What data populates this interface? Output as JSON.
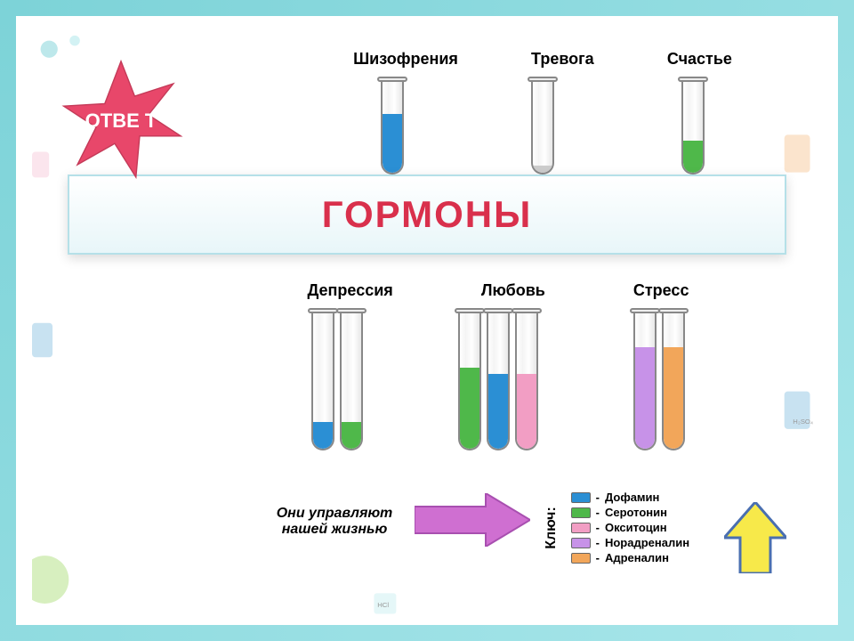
{
  "star_label": "ОТВЕ\nТ",
  "star_color": "#e8476a",
  "title": "ГОРМОНЫ",
  "title_color": "#d9304c",
  "title_bg_gradient": [
    "#ffffff",
    "#e8f6f9"
  ],
  "frame_color": "#7dd3d8",
  "top_row": {
    "labels": [
      "Шизофрения",
      "Тревога",
      "Счастье"
    ],
    "tubes": [
      {
        "fill_pct": 65,
        "color": "#2b8fd4"
      },
      {
        "fill_pct": 8,
        "color": "#cccccc"
      },
      {
        "fill_pct": 35,
        "color": "#4fb84a"
      }
    ]
  },
  "mid_row": {
    "labels": [
      "Депрессия",
      "Любовь",
      "Стресс"
    ],
    "groups": [
      [
        {
          "fill_pct": 20,
          "color": "#2b8fd4"
        },
        {
          "fill_pct": 20,
          "color": "#4fb84a"
        }
      ],
      [
        {
          "fill_pct": 60,
          "color": "#4fb84a"
        },
        {
          "fill_pct": 55,
          "color": "#2b8fd4"
        },
        {
          "fill_pct": 55,
          "color": "#f29ec4"
        }
      ],
      [
        {
          "fill_pct": 75,
          "color": "#c792e8"
        },
        {
          "fill_pct": 75,
          "color": "#f2a65a"
        }
      ]
    ]
  },
  "bottom_text": "Они управляют нашей жизнью",
  "arrow_color": "#cf6fd1",
  "nav_arrow_fill": "#f7e94a",
  "nav_arrow_stroke": "#4a6fb0",
  "legend": {
    "title": "Ключ:",
    "items": [
      {
        "color": "#2b8fd4",
        "label": "Дофамин"
      },
      {
        "color": "#4fb84a",
        "label": "Серотонин"
      },
      {
        "color": "#f29ec4",
        "label": "Окситоцин"
      },
      {
        "color": "#c792e8",
        "label": "Норадреналин"
      },
      {
        "color": "#f2a65a",
        "label": "Адреналин"
      }
    ]
  },
  "tube_border": "#888888",
  "deco": {
    "top_left_atom": "#3aa0bf",
    "flask_green": "#8fd14a",
    "flask_blue": "#4a9fd1",
    "flask_orange": "#f2a65a"
  }
}
